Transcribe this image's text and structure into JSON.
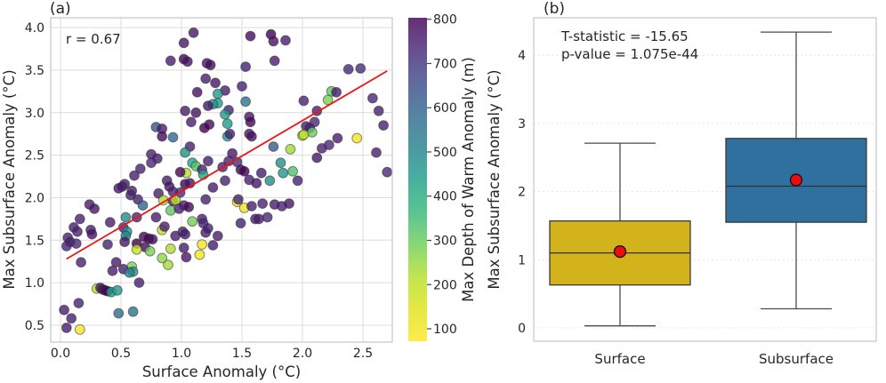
{
  "chart_data": [
    {
      "type": "scatter",
      "panel_label": "(a)",
      "annotation": "r = 0.67",
      "xlabel": "Surface Anomaly (°C)",
      "ylabel": "Max Subsurface Anomaly (°C)",
      "xlim": [
        -0.08,
        2.74
      ],
      "ylim": [
        0.31,
        4.12
      ],
      "x_tick_values": [
        0,
        0.5,
        1,
        1.5,
        2,
        2.5
      ],
      "x_tick_labels": [
        "0.0",
        "0.5",
        "1.0",
        "1.5",
        "2.0",
        "2.5"
      ],
      "y_tick_values": [
        0.5,
        1,
        1.5,
        2,
        2.5,
        3,
        3.5,
        4
      ],
      "y_tick_labels": [
        "0.5",
        "1.0",
        "1.5",
        "2.0",
        "2.5",
        "3.0",
        "3.5",
        "4.0"
      ],
      "grid": true,
      "regression_line": {
        "x_start": 0.05,
        "y_start": 1.28,
        "x_end": 2.7,
        "y_end": 3.49,
        "color": "#f01414"
      },
      "colorbar": {
        "label": "Max Depth of Warm Anomaly (m)",
        "tick_values": [
          100,
          200,
          300,
          400,
          500,
          600,
          700,
          800
        ],
        "tick_labels": [
          "100",
          "200",
          "300",
          "400",
          "500",
          "600",
          "700",
          "800"
        ],
        "vmin": 76,
        "vmax": 803,
        "colormap": "viridis_r"
      },
      "point_color_encodes": "max_depth_of_warm_anomaly_m",
      "points": [
        [
          1.1,
          3.94,
          760
        ],
        [
          1.57,
          3.9,
          780
        ],
        [
          1.74,
          3.92,
          800
        ],
        [
          1.76,
          3.84,
          770
        ],
        [
          1.86,
          3.85,
          750
        ],
        [
          1.02,
          3.82,
          760
        ],
        [
          0.91,
          3.61,
          750
        ],
        [
          1.02,
          3.63,
          790
        ],
        [
          1.05,
          3.6,
          770
        ],
        [
          1.21,
          3.58,
          760
        ],
        [
          1.24,
          3.56,
          780
        ],
        [
          1.53,
          3.54,
          740
        ],
        [
          1.77,
          3.61,
          750
        ],
        [
          2.38,
          3.51,
          730
        ],
        [
          2.48,
          3.52,
          720
        ],
        [
          1.2,
          3.4,
          750
        ],
        [
          1.28,
          3.35,
          760
        ],
        [
          1.5,
          3.31,
          740
        ],
        [
          1.36,
          3.26,
          750
        ],
        [
          1.13,
          3.24,
          770
        ],
        [
          1.3,
          3.22,
          470
        ],
        [
          1.53,
          3.13,
          560
        ],
        [
          1.3,
          3.11,
          450
        ],
        [
          1.26,
          3.1,
          480
        ],
        [
          1.39,
          3.03,
          740
        ],
        [
          1.22,
          3.08,
          760
        ],
        [
          1.03,
          3.02,
          750
        ],
        [
          1.12,
          3.0,
          770
        ],
        [
          1.36,
          2.98,
          460
        ],
        [
          2.24,
          3.25,
          330
        ],
        [
          2.28,
          3.24,
          750
        ],
        [
          2.01,
          3.14,
          740
        ],
        [
          2.21,
          3.15,
          300
        ],
        [
          2.58,
          3.17,
          730
        ],
        [
          2.12,
          3.02,
          750
        ],
        [
          2.63,
          3.02,
          740
        ],
        [
          1.56,
          2.95,
          760
        ],
        [
          1.57,
          2.89,
          790
        ],
        [
          1.38,
          2.87,
          450
        ],
        [
          0.79,
          2.83,
          640
        ],
        [
          0.84,
          2.81,
          750
        ],
        [
          1.08,
          2.89,
          750
        ],
        [
          1.23,
          2.86,
          780
        ],
        [
          1.19,
          2.82,
          800
        ],
        [
          2.1,
          2.89,
          730
        ],
        [
          2.67,
          2.85,
          740
        ],
        [
          1.38,
          2.72,
          460
        ],
        [
          1.4,
          2.75,
          740
        ],
        [
          1.56,
          2.75,
          750
        ],
        [
          1.58,
          2.72,
          770
        ],
        [
          0.93,
          2.71,
          590
        ],
        [
          0.84,
          2.72,
          780
        ],
        [
          2.03,
          2.84,
          740
        ],
        [
          2.06,
          2.82,
          750
        ],
        [
          2.0,
          2.73,
          250
        ],
        [
          2.08,
          2.77,
          320
        ],
        [
          2.01,
          2.74,
          230
        ],
        [
          2.45,
          2.7,
          120
        ],
        [
          2.29,
          2.7,
          750
        ],
        [
          1.76,
          2.6,
          620
        ],
        [
          1.9,
          2.57,
          260
        ],
        [
          2.16,
          2.58,
          740
        ],
        [
          2.22,
          2.62,
          730
        ],
        [
          2.12,
          2.47,
          760
        ],
        [
          2.61,
          2.53,
          740
        ],
        [
          1.07,
          2.6,
          750
        ],
        [
          0.75,
          2.51,
          740
        ],
        [
          0.8,
          2.46,
          750
        ],
        [
          1.03,
          2.53,
          480
        ],
        [
          1.09,
          2.41,
          440
        ],
        [
          1.42,
          2.52,
          760
        ],
        [
          1.46,
          2.42,
          730
        ],
        [
          1.39,
          2.43,
          740
        ],
        [
          1.22,
          2.43,
          750
        ],
        [
          1.82,
          2.41,
          480
        ],
        [
          1.84,
          2.29,
          470
        ],
        [
          1.92,
          2.31,
          350
        ],
        [
          1.66,
          2.29,
          750
        ],
        [
          1.49,
          2.33,
          790
        ],
        [
          1.52,
          2.31,
          800
        ],
        [
          1.34,
          2.36,
          750
        ],
        [
          1.12,
          2.37,
          340
        ],
        [
          1.04,
          2.29,
          240
        ],
        [
          0.99,
          2.3,
          790
        ],
        [
          1.17,
          2.33,
          740
        ],
        [
          1.18,
          2.27,
          430
        ],
        [
          0.66,
          2.34,
          740
        ],
        [
          0.61,
          2.26,
          750
        ],
        [
          0.75,
          2.41,
          730
        ],
        [
          2.7,
          2.3,
          730
        ],
        [
          1.96,
          2.2,
          740
        ],
        [
          1.73,
          2.2,
          490
        ],
        [
          0.53,
          2.16,
          740
        ],
        [
          0.51,
          2.13,
          750
        ],
        [
          0.48,
          2.11,
          760
        ],
        [
          0.59,
          2.08,
          750
        ],
        [
          0.58,
          2.03,
          740
        ],
        [
          0.88,
          2.2,
          750
        ],
        [
          0.9,
          2.13,
          770
        ],
        [
          1.03,
          2.16,
          790
        ],
        [
          1.07,
          2.17,
          760
        ],
        [
          0.81,
          2.05,
          750
        ],
        [
          0.93,
          2.07,
          740
        ],
        [
          0.99,
          2.06,
          730
        ],
        [
          1.26,
          2.12,
          750
        ],
        [
          1.36,
          2.2,
          740
        ],
        [
          1.56,
          2.21,
          750
        ],
        [
          1.62,
          2.17,
          760
        ],
        [
          0.64,
          1.98,
          740
        ],
        [
          0.93,
          1.96,
          750
        ],
        [
          1.02,
          1.91,
          750
        ],
        [
          1.06,
          1.89,
          790
        ],
        [
          1.2,
          1.98,
          740
        ],
        [
          0.95,
          1.97,
          230
        ],
        [
          0.85,
          1.97,
          250
        ],
        [
          0.91,
          1.85,
          330
        ],
        [
          0.98,
          1.87,
          740
        ],
        [
          0.24,
          1.92,
          750
        ],
        [
          0.28,
          1.87,
          760
        ],
        [
          1.46,
          1.95,
          120
        ],
        [
          1.52,
          1.88,
          130
        ],
        [
          1.47,
          1.98,
          730
        ],
        [
          1.58,
          1.9,
          740
        ],
        [
          1.67,
          1.93,
          740
        ],
        [
          1.77,
          1.92,
          750
        ],
        [
          1.83,
          1.9,
          740
        ],
        [
          1.89,
          1.93,
          760
        ],
        [
          0.16,
          1.75,
          740
        ],
        [
          0.41,
          1.71,
          750
        ],
        [
          0.63,
          1.77,
          740
        ],
        [
          0.79,
          1.77,
          750
        ],
        [
          0.68,
          1.91,
          600
        ],
        [
          1.17,
          1.75,
          740
        ],
        [
          1.09,
          1.72,
          310
        ],
        [
          1.61,
          1.75,
          750
        ],
        [
          1.71,
          1.77,
          730
        ],
        [
          1.64,
          1.75,
          750
        ],
        [
          0.06,
          1.53,
          740
        ],
        [
          0.08,
          1.48,
          750
        ],
        [
          0.13,
          1.46,
          730
        ],
        [
          0.05,
          1.43,
          740
        ],
        [
          0.11,
          1.65,
          750
        ],
        [
          0.14,
          1.6,
          740
        ],
        [
          0.25,
          1.62,
          750
        ],
        [
          0.26,
          1.57,
          770
        ],
        [
          0.52,
          1.65,
          730
        ],
        [
          0.54,
          1.77,
          500
        ],
        [
          0.55,
          1.6,
          480
        ],
        [
          0.54,
          1.55,
          520
        ],
        [
          0.84,
          1.62,
          220
        ],
        [
          0.86,
          1.66,
          740
        ],
        [
          0.95,
          1.55,
          750
        ],
        [
          1.01,
          1.6,
          740
        ],
        [
          1.03,
          1.57,
          750
        ],
        [
          1.22,
          1.64,
          740
        ],
        [
          1.3,
          1.55,
          750
        ],
        [
          1.49,
          1.7,
          740
        ],
        [
          1.18,
          1.7,
          730
        ],
        [
          1.2,
          1.59,
          750
        ],
        [
          0.39,
          1.45,
          740
        ],
        [
          0.53,
          1.48,
          760
        ],
        [
          0.63,
          1.46,
          800
        ],
        [
          0.7,
          1.42,
          780
        ],
        [
          0.69,
          1.54,
          790
        ],
        [
          0.73,
          1.52,
          800
        ],
        [
          0.76,
          1.51,
          780
        ],
        [
          0.63,
          1.39,
          210
        ],
        [
          0.74,
          1.37,
          300
        ],
        [
          0.91,
          1.4,
          250
        ],
        [
          1.02,
          1.41,
          750
        ],
        [
          1.17,
          1.45,
          120
        ],
        [
          1.15,
          1.33,
          130
        ],
        [
          1.26,
          1.44,
          750
        ],
        [
          1.04,
          1.3,
          760
        ],
        [
          0.46,
          1.24,
          750
        ],
        [
          0.17,
          1.24,
          740
        ],
        [
          0.59,
          1.19,
          300
        ],
        [
          0.6,
          1.13,
          480
        ],
        [
          0.52,
          1.16,
          750
        ],
        [
          0.43,
          1.14,
          750
        ],
        [
          0.84,
          1.29,
          280
        ],
        [
          0.89,
          1.21,
          260
        ],
        [
          0.65,
          1.0,
          750
        ],
        [
          0.57,
          1.12,
          520
        ],
        [
          0.3,
          0.93,
          230
        ],
        [
          0.33,
          0.94,
          750
        ],
        [
          0.35,
          0.92,
          760
        ],
        [
          0.37,
          0.91,
          780
        ],
        [
          0.39,
          0.9,
          800
        ],
        [
          0.42,
          0.89,
          450
        ],
        [
          0.47,
          0.91,
          470
        ],
        [
          0.15,
          0.76,
          740
        ],
        [
          0.03,
          0.68,
          750
        ],
        [
          0.09,
          0.58,
          740
        ],
        [
          0.48,
          0.64,
          580
        ],
        [
          0.6,
          0.66,
          560
        ],
        [
          0.05,
          0.47,
          750
        ],
        [
          0.16,
          0.45,
          110
        ]
      ]
    },
    {
      "type": "boxplot",
      "panel_label": "(b)",
      "annotation_line1": "T-statistic = -15.65",
      "annotation_line2": "p-value = 1.075e-44",
      "ylabel": "Max Subsurface Anomaly (°C)",
      "categories": [
        "Surface",
        "Subsurface"
      ],
      "y_tick_values": [
        0,
        1,
        2,
        3,
        4
      ],
      "y_tick_labels": [
        "0",
        "1",
        "2",
        "3",
        "4"
      ],
      "ylim": [
        -0.2,
        4.55
      ],
      "grid": true,
      "mean_marker_color": "#ea0e0e",
      "boxes": [
        {
          "label": "Surface",
          "color": "#d3b31c",
          "whisker_low": 0.03,
          "q1": 0.63,
          "median": 1.1,
          "q3": 1.57,
          "whisker_high": 2.71,
          "mean": 1.12
        },
        {
          "label": "Subsurface",
          "color": "#2f709f",
          "whisker_low": 0.28,
          "q1": 1.55,
          "median": 2.08,
          "q3": 2.78,
          "whisker_high": 4.34,
          "mean": 2.17
        }
      ]
    }
  ]
}
